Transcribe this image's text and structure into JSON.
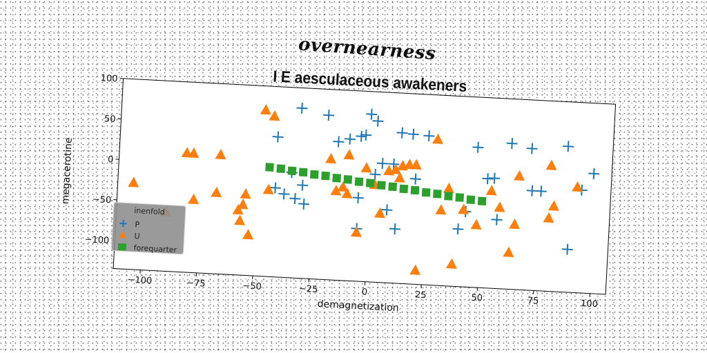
{
  "figure": {
    "suptitle": "overnearness"
  },
  "colors": {
    "P": "#1f77b4",
    "U": "#ff7f0e",
    "forequarter": "#2ca02c"
  },
  "chart_data": {
    "type": "scatter",
    "title": "I E aesculaceous awakeners",
    "xlabel": "demagnetization",
    "ylabel": "megacerotine",
    "xlim": [
      -112,
      107
    ],
    "ylim": [
      -135,
      100
    ],
    "xticks": [
      -100,
      -75,
      -50,
      -25,
      0,
      25,
      50,
      75,
      100
    ],
    "yticks": [
      -100,
      -50,
      0,
      50,
      100
    ],
    "grid": false,
    "legend": {
      "title": "inenfold",
      "placement": "lower-left"
    },
    "series": [
      {
        "name": "P",
        "marker": "plus",
        "points": [
          [
            -42,
            38
          ],
          [
            -32,
            75
          ],
          [
            -20,
            68
          ],
          [
            -15,
            36
          ],
          [
            -10,
            40
          ],
          [
            -5,
            44
          ],
          [
            -3,
            46
          ],
          [
            -1,
            72
          ],
          [
            2,
            64
          ],
          [
            -42,
            -25
          ],
          [
            -38,
            -32
          ],
          [
            -33,
            -37
          ],
          [
            -29,
            -43
          ],
          [
            -30,
            -20
          ],
          [
            -5,
            -32
          ],
          [
            -5,
            -70
          ],
          [
            2,
            -2
          ],
          [
            5,
            12
          ],
          [
            8,
            -45
          ],
          [
            10,
            12
          ],
          [
            13,
            51
          ],
          [
            18,
            50
          ],
          [
            25,
            49
          ],
          [
            -35,
            -5
          ],
          [
            12,
            -68
          ],
          [
            20,
            -5
          ],
          [
            40,
            -64
          ],
          [
            43,
            -42
          ],
          [
            47,
            38
          ],
          [
            52,
            0
          ],
          [
            55,
            1
          ],
          [
            57,
            -50
          ],
          [
            62,
            45
          ],
          [
            71,
            40
          ],
          [
            72,
            -12
          ],
          [
            76,
            -12
          ],
          [
            87,
            45
          ],
          [
            89,
            -82
          ],
          [
            99,
            13
          ],
          [
            94,
            -8
          ]
        ]
      },
      {
        "name": "U",
        "marker": "triangle",
        "points": [
          [
            -105,
            -28
          ],
          [
            -90,
            -62
          ],
          [
            -82,
            12
          ],
          [
            -79,
            12
          ],
          [
            -78,
            -45
          ],
          [
            -67,
            12
          ],
          [
            -68,
            -35
          ],
          [
            -58,
            -55
          ],
          [
            -57,
            -68
          ],
          [
            -56,
            -48
          ],
          [
            -55,
            -35
          ],
          [
            -53,
            -85
          ],
          [
            -48,
            70
          ],
          [
            -44,
            63
          ],
          [
            -45,
            -28
          ],
          [
            -18,
            14
          ],
          [
            -15,
            -25
          ],
          [
            -12,
            -20
          ],
          [
            -10,
            -28
          ],
          [
            -10,
            20
          ],
          [
            -5,
            -75
          ],
          [
            -2,
            5
          ],
          [
            2,
            -15
          ],
          [
            5,
            -50
          ],
          [
            8,
            3
          ],
          [
            11,
            5
          ],
          [
            13,
            -5
          ],
          [
            14,
            10
          ],
          [
            17,
            12
          ],
          [
            20,
            12
          ],
          [
            22,
            -118
          ],
          [
            22,
            -150
          ],
          [
            29,
            45
          ],
          [
            32,
            -42
          ],
          [
            35,
            -15
          ],
          [
            38,
            -108
          ],
          [
            42,
            -40
          ],
          [
            48,
            -58
          ],
          [
            54,
            -15
          ],
          [
            58,
            -35
          ],
          [
            63,
            -90
          ],
          [
            65,
            -55
          ],
          [
            66,
            5
          ],
          [
            80,
            20
          ],
          [
            80,
            -45
          ],
          [
            82,
            -30
          ],
          [
            92,
            -5
          ]
        ]
      },
      {
        "name": "forequarter",
        "marker": "square",
        "points": [
          [
            -45,
            0
          ],
          [
            -40,
            -1
          ],
          [
            -35,
            -3
          ],
          [
            -30,
            -4
          ],
          [
            -25,
            -6
          ],
          [
            -20,
            -7
          ],
          [
            -15,
            -9
          ],
          [
            -10,
            -10
          ],
          [
            -5,
            -12
          ],
          [
            0,
            -13
          ],
          [
            5,
            -15
          ],
          [
            10,
            -16
          ],
          [
            15,
            -18
          ],
          [
            20,
            -19
          ],
          [
            25,
            -21
          ],
          [
            30,
            -22
          ],
          [
            35,
            -24
          ],
          [
            40,
            -25
          ],
          [
            45,
            -27
          ],
          [
            50,
            -28
          ]
        ]
      }
    ]
  }
}
